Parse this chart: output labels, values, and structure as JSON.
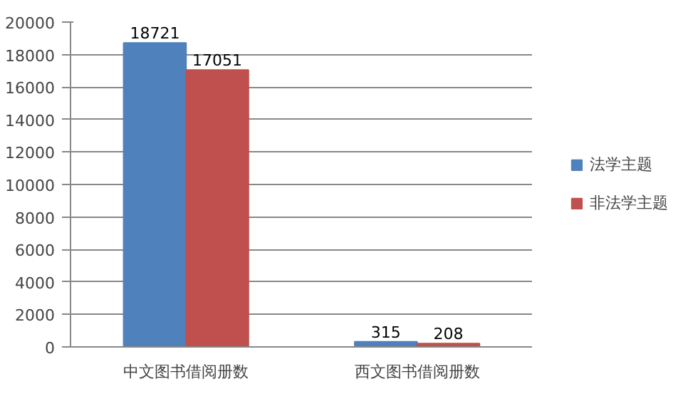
{
  "chart_data": {
    "type": "bar",
    "categories": [
      "中文图书借阅册数",
      "西文图书借阅册数"
    ],
    "series": [
      {
        "name": "法学主题",
        "color": "#4f81bd",
        "values": [
          18721,
          315
        ]
      },
      {
        "name": "非法学主题",
        "color": "#c0504d",
        "values": [
          17051,
          208
        ]
      }
    ],
    "ylim": [
      0,
      20000
    ],
    "yticks": [
      0,
      2000,
      4000,
      6000,
      8000,
      10000,
      12000,
      14000,
      16000,
      18000,
      20000
    ],
    "grid": "y",
    "legend": "right",
    "data_labels": true
  }
}
